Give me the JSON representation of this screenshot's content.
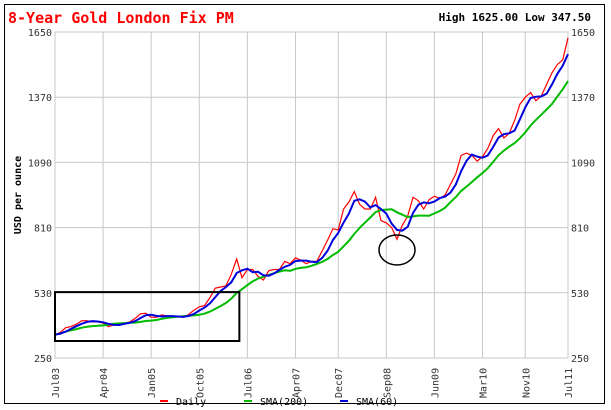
{
  "chart_data": {
    "type": "line",
    "title": "8-Year Gold London Fix PM",
    "high_low": "High 1625.00 Low 347.50",
    "ylabel": "USD per ounce",
    "xlabel": "",
    "ylim": [
      250,
      1650
    ],
    "yticks": [
      "250",
      "530",
      "810",
      "1090",
      "1370",
      "1650"
    ],
    "start_month": "Jul03",
    "xticks": [
      {
        "label": "Jul03",
        "month_index": 0
      },
      {
        "label": "Apr04",
        "month_index": 9
      },
      {
        "label": "Jan05",
        "month_index": 18
      },
      {
        "label": "Oct05",
        "month_index": 27
      },
      {
        "label": "Jul06",
        "month_index": 36
      },
      {
        "label": "Apr07",
        "month_index": 45
      },
      {
        "label": "Dec07",
        "month_index": 53
      },
      {
        "label": "Sep08",
        "month_index": 62
      },
      {
        "label": "Jun09",
        "month_index": 71
      },
      {
        "label": "Mar10",
        "month_index": 80
      },
      {
        "label": "Nov10",
        "month_index": 88
      },
      {
        "label": "Jul11",
        "month_index": 96
      }
    ],
    "grid": true,
    "legend_position": "bottom",
    "series": [
      {
        "name": "Daily",
        "color": "#ff0000",
        "values": [
          350,
          360,
          380,
          385,
          395,
          410,
          410,
          405,
          405,
          400,
          385,
          392,
          398,
          400,
          405,
          420,
          440,
          442,
          425,
          425,
          435,
          430,
          425,
          430,
          425,
          437,
          455,
          470,
          475,
          510,
          550,
          555,
          560,
          610,
          675,
          595,
          630,
          630,
          600,
          585,
          625,
          630,
          630,
          665,
          655,
          680,
          670,
          655,
          665,
          665,
          710,
          755,
          805,
          800,
          890,
          920,
          965,
          910,
          890,
          890,
          940,
          840,
          830,
          810,
          760,
          820,
          860,
          940,
          925,
          890,
          930,
          945,
          935,
          950,
          995,
          1040,
          1120,
          1130,
          1120,
          1095,
          1115,
          1150,
          1205,
          1235,
          1195,
          1215,
          1270,
          1340,
          1370,
          1390,
          1355,
          1375,
          1425,
          1475,
          1510,
          1530,
          1625
        ]
      },
      {
        "name": "SMA(200)",
        "color": "#00bb00",
        "window_months": 10
      },
      {
        "name": "SMA(60)",
        "color": "#0000dd",
        "window_months": 3
      }
    ],
    "annotations": [
      {
        "shape": "rectangle",
        "from_month_index": 0,
        "to_month_index": 34.5,
        "from_value": 323,
        "to_value": 533
      },
      {
        "shape": "circle",
        "month_index": 64,
        "value": 714
      }
    ]
  }
}
